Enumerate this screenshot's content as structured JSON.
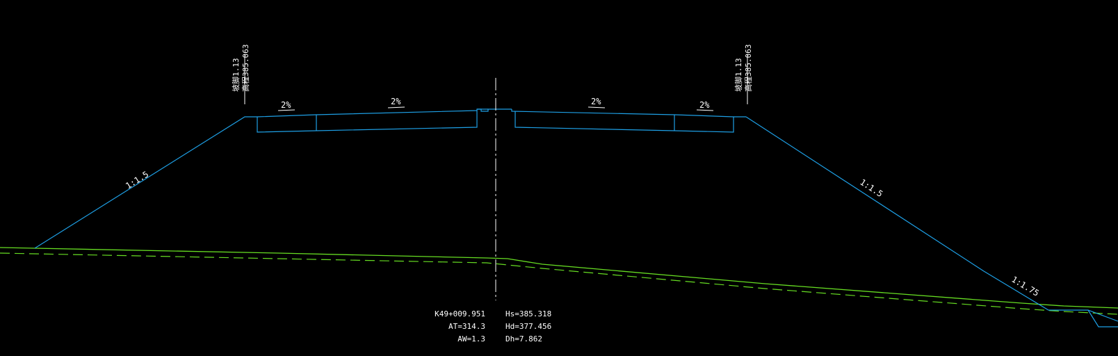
{
  "colors": {
    "background": "#000000",
    "section": "#1ea0e6",
    "ground": "#66dd22",
    "centerline": "#ffffff",
    "text": "#ffffff"
  },
  "labels": {
    "left_edge_line1": "坡脚1.13",
    "left_edge_line2": "高程385.063",
    "right_edge_line1": "坡脚1.13",
    "right_edge_line2": "高程385.063",
    "grade_1": "2%",
    "grade_2": "2%",
    "grade_3": "2%",
    "grade_4": "2%",
    "slope_left": "1:1.5",
    "slope_right_upper": "1:1.5",
    "slope_right_lower": "1:1.75"
  },
  "station": {
    "chainage": "K49+009.951",
    "at": "AT=314.3",
    "aw": "AW=1.3",
    "hs": "Hs=385.318",
    "hd": "Hd=377.456",
    "dh": "Dh=7.862"
  }
}
